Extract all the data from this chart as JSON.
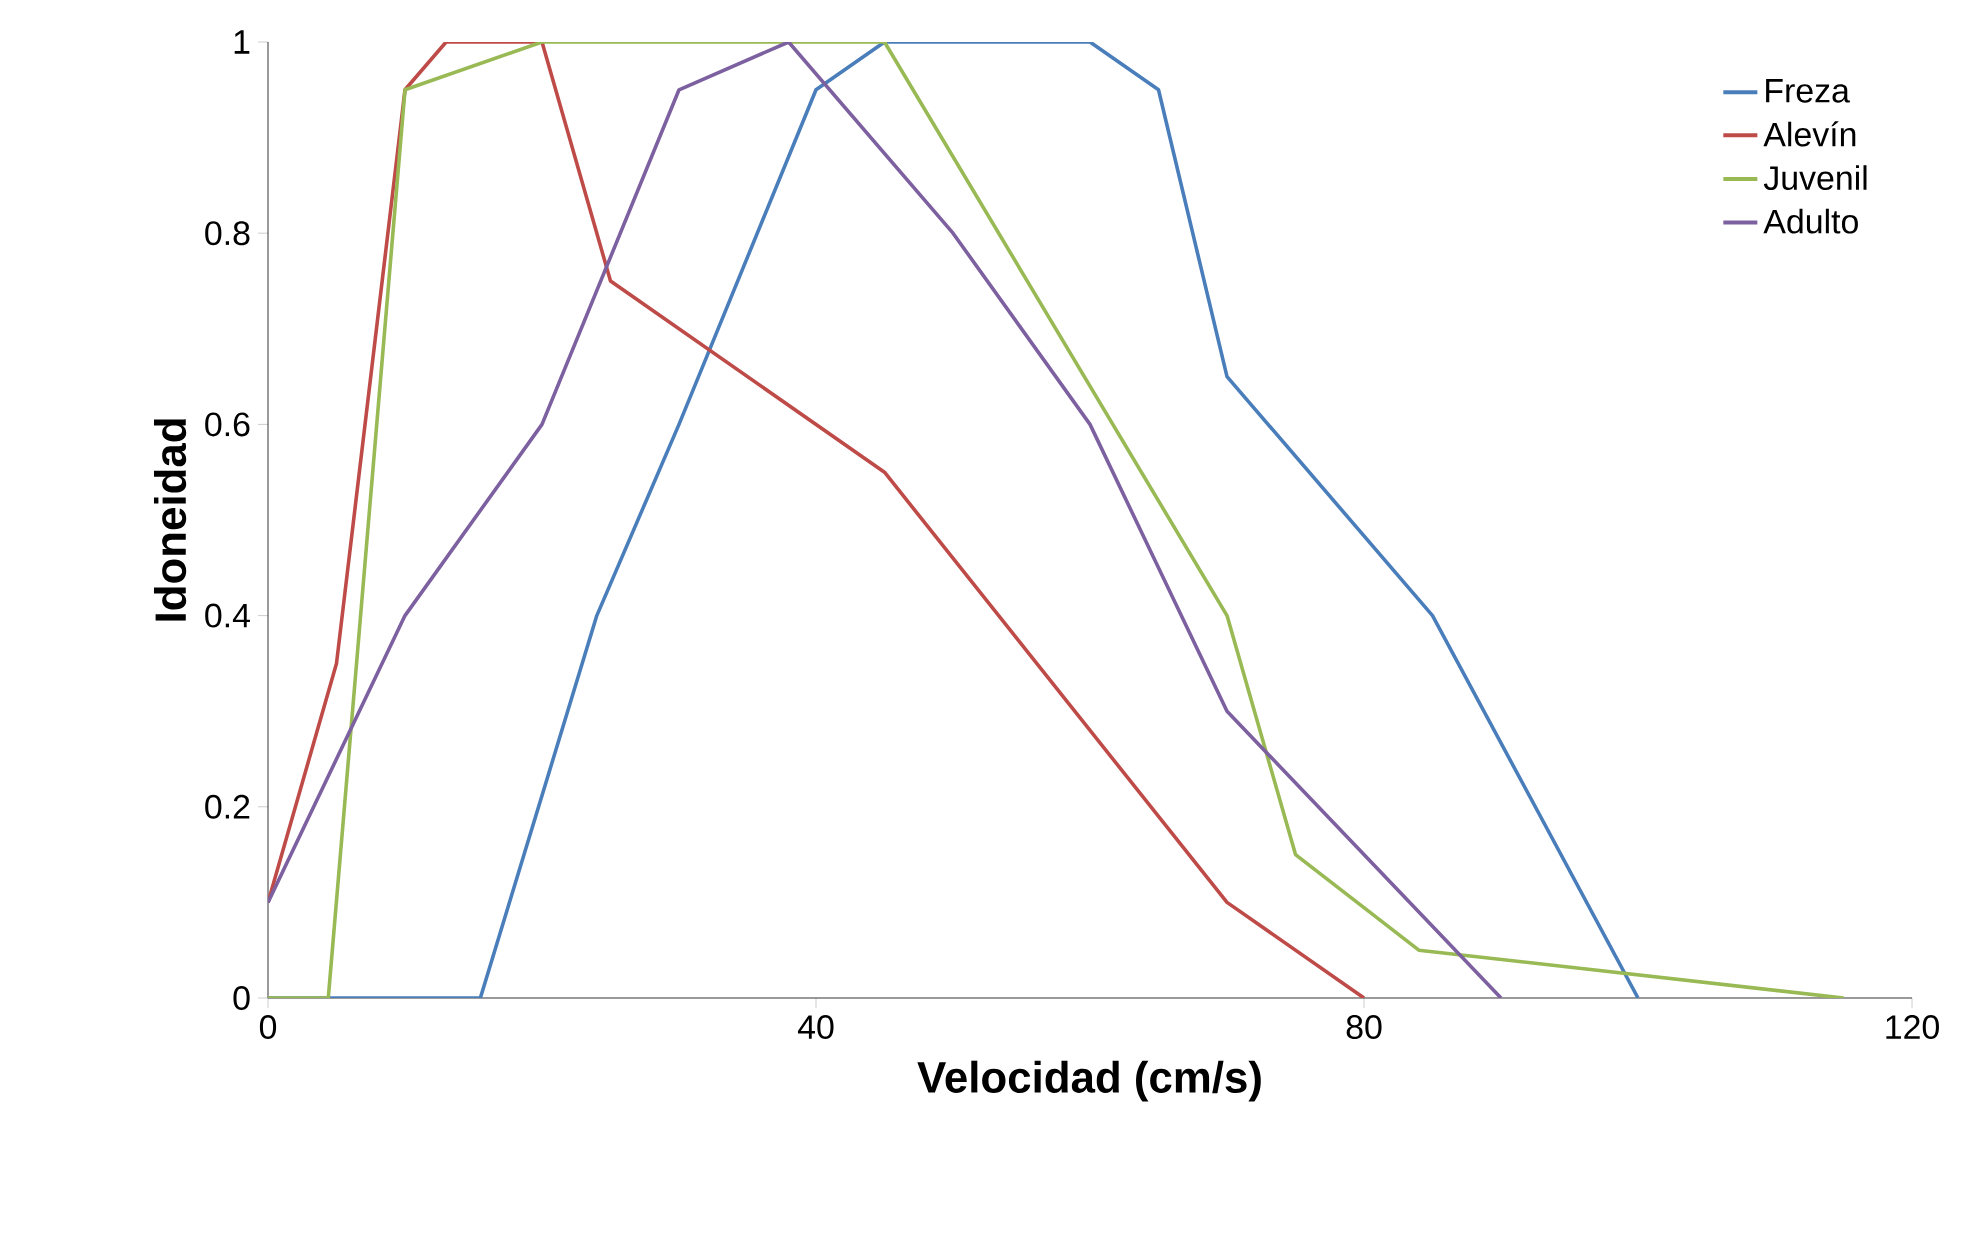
{
  "chart_data": {
    "type": "line",
    "xlabel": "Velocidad (cm/s)",
    "ylabel": "Idoneidad",
    "xlim": [
      0,
      120
    ],
    "xticks": [
      0,
      40,
      80,
      120
    ],
    "ylim": [
      0,
      1
    ],
    "yticks": [
      0,
      0.2,
      0.4,
      0.6,
      0.8,
      1
    ],
    "legend": "top right",
    "grid": false,
    "marker": "none",
    "line_style": "solid",
    "series": [
      {
        "name": "Freza",
        "color": "#4a7ebb",
        "x": [
          0,
          15.5,
          24,
          30,
          40,
          45,
          60,
          65,
          70,
          85,
          100
        ],
        "values": [
          0,
          0,
          0.4,
          0.6,
          0.95,
          1,
          1,
          0.95,
          0.65,
          0.4,
          0
        ]
      },
      {
        "name": "Alevín",
        "color": "#be4b48",
        "x": [
          0,
          5,
          10,
          13,
          20,
          25,
          45,
          70,
          80
        ],
        "values": [
          0.1,
          0.35,
          0.95,
          1,
          1,
          0.75,
          0.55,
          0.1,
          0
        ]
      },
      {
        "name": "Juvenil",
        "color": "#98b954",
        "x": [
          0,
          4.4,
          10,
          20,
          45,
          70,
          75,
          84,
          115
        ],
        "values": [
          0,
          0,
          0.95,
          1,
          1,
          0.4,
          0.15,
          0.05,
          0
        ]
      },
      {
        "name": "Adulto",
        "color": "#7d60a0",
        "x": [
          0,
          10,
          20,
          30,
          38,
          50,
          60,
          70,
          90
        ],
        "values": [
          0.1,
          0.4,
          0.6,
          0.95,
          1,
          0.8,
          0.6,
          0.3,
          0
        ]
      }
    ]
  }
}
